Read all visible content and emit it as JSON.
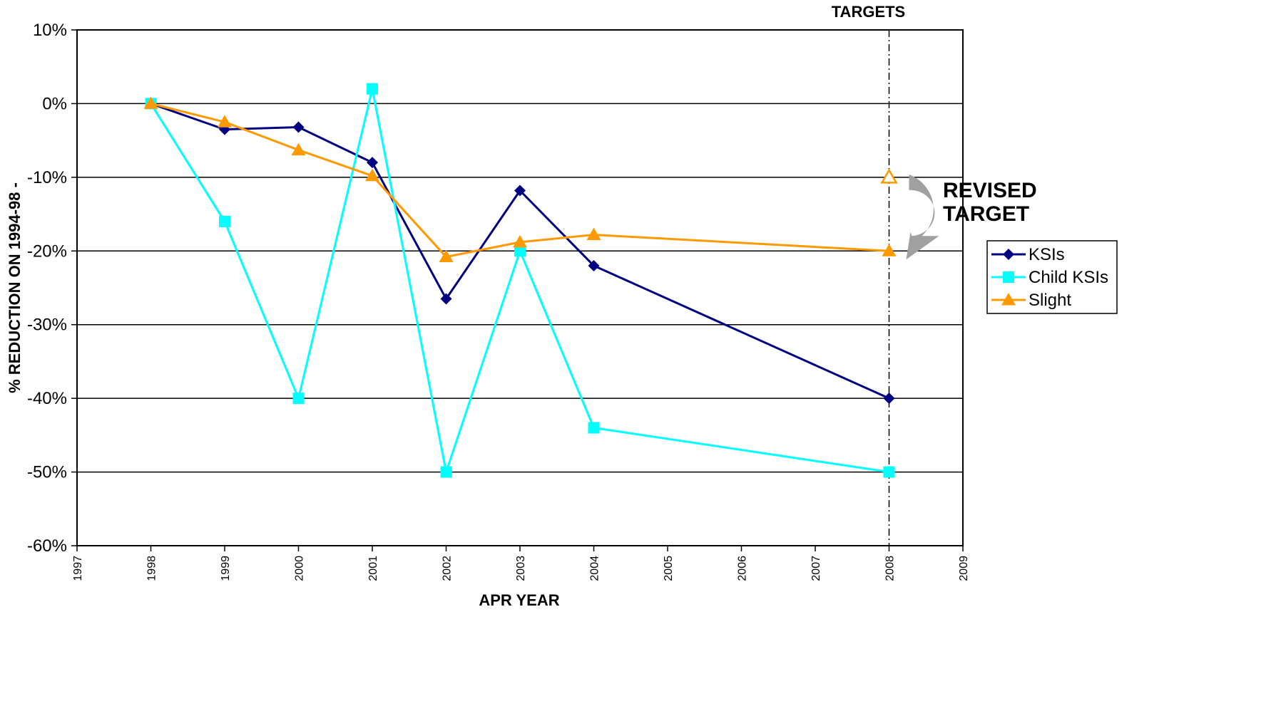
{
  "chart_data": {
    "type": "line",
    "xlabel": "APR YEAR",
    "ylabel": "% REDUCTION ON 1994-98 -",
    "xlim": [
      1997,
      2009
    ],
    "ylim": [
      -60,
      10
    ],
    "x_ticks": [
      1997,
      1998,
      1999,
      2000,
      2001,
      2002,
      2003,
      2004,
      2005,
      2006,
      2007,
      2008,
      2009
    ],
    "y_ticks": [
      10,
      0,
      -10,
      -20,
      -30,
      -40,
      -50,
      -60
    ],
    "y_tick_labels": [
      "10%",
      "0%",
      "-10%",
      "-20%",
      "-30%",
      "-40%",
      "-50%",
      "-60%"
    ],
    "grid": "horizontal",
    "legend_position": "right",
    "series": [
      {
        "name": "KSIs",
        "color": "#000080",
        "marker": "diamond",
        "x": [
          1998,
          1999,
          2000,
          2001,
          2002,
          2003,
          2004,
          2008
        ],
        "y": [
          0,
          -3.5,
          -3.2,
          -8,
          -26.5,
          -11.8,
          -22,
          -40
        ]
      },
      {
        "name": "Child KSIs",
        "color": "#00FFFF",
        "marker": "square",
        "x": [
          1998,
          1999,
          2000,
          2001,
          2002,
          2003,
          2004,
          2008
        ],
        "y": [
          0,
          -16,
          -40,
          2,
          -50,
          -20,
          -44,
          -50
        ]
      },
      {
        "name": "Slight",
        "color": "#FF9900",
        "marker": "triangle",
        "x": [
          1998,
          1999,
          2000,
          2001,
          2002,
          2003,
          2004,
          2008
        ],
        "y": [
          0,
          -2.5,
          -6.3,
          -9.8,
          -20.8,
          -18.8,
          -17.8,
          -20
        ]
      }
    ],
    "original_target": {
      "series": "Slight",
      "x": 2008,
      "y": -10,
      "marker": "hollow-triangle",
      "color": "#FF9900"
    },
    "targets_line": {
      "x": 2008,
      "label": "TARGETS"
    },
    "revised_annotation": {
      "label_line1": "REVISED",
      "label_line2": "TARGET",
      "arrow_color": "#A0A0A0"
    }
  }
}
